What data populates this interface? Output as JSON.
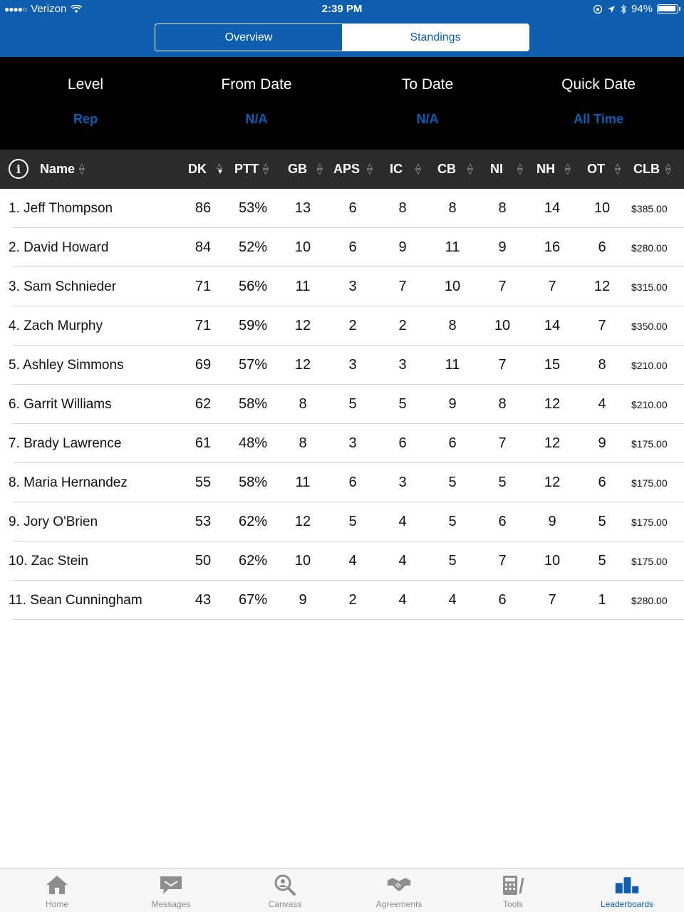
{
  "status_bar": {
    "signal": "●●●●○",
    "carrier": "Verizon",
    "time": "2:39 PM",
    "battery_text": "94%",
    "battery_level": 0.94
  },
  "segments": [
    {
      "label": "Overview",
      "selected": false
    },
    {
      "label": "Standings",
      "selected": true
    }
  ],
  "filters": [
    {
      "label": "Level",
      "value": "Rep"
    },
    {
      "label": "From Date",
      "value": "N/A"
    },
    {
      "label": "To Date",
      "value": "N/A"
    },
    {
      "label": "Quick Date",
      "value": "All Time"
    }
  ],
  "columns": {
    "info_icon": "i",
    "name": "Name",
    "dk": "DK",
    "ptt": "PTT",
    "gb": "GB",
    "aps": "APS",
    "ic": "IC",
    "cb": "CB",
    "ni": "NI",
    "nh": "NH",
    "ot": "OT",
    "clb": "CLB"
  },
  "rows": [
    {
      "name": "1. Jeff Thompson",
      "dk": "86",
      "ptt": "53%",
      "gb": "13",
      "aps": "6",
      "ic": "8",
      "cb": "8",
      "ni": "8",
      "nh": "14",
      "ot": "10",
      "clb": "$385.00"
    },
    {
      "name": "2. David Howard",
      "dk": "84",
      "ptt": "52%",
      "gb": "10",
      "aps": "6",
      "ic": "9",
      "cb": "11",
      "ni": "9",
      "nh": "16",
      "ot": "6",
      "clb": "$280.00"
    },
    {
      "name": "3. Sam Schnieder",
      "dk": "71",
      "ptt": "56%",
      "gb": "11",
      "aps": "3",
      "ic": "7",
      "cb": "10",
      "ni": "7",
      "nh": "7",
      "ot": "12",
      "clb": "$315.00"
    },
    {
      "name": "4. Zach Murphy",
      "dk": "71",
      "ptt": "59%",
      "gb": "12",
      "aps": "2",
      "ic": "2",
      "cb": "8",
      "ni": "10",
      "nh": "14",
      "ot": "7",
      "clb": "$350.00"
    },
    {
      "name": "5. Ashley Simmons",
      "dk": "69",
      "ptt": "57%",
      "gb": "12",
      "aps": "3",
      "ic": "3",
      "cb": "11",
      "ni": "7",
      "nh": "15",
      "ot": "8",
      "clb": "$210.00"
    },
    {
      "name": "6. Garrit Williams",
      "dk": "62",
      "ptt": "58%",
      "gb": "8",
      "aps": "5",
      "ic": "5",
      "cb": "9",
      "ni": "8",
      "nh": "12",
      "ot": "4",
      "clb": "$210.00"
    },
    {
      "name": "7. Brady Lawrence",
      "dk": "61",
      "ptt": "48%",
      "gb": "8",
      "aps": "3",
      "ic": "6",
      "cb": "6",
      "ni": "7",
      "nh": "12",
      "ot": "9",
      "clb": "$175.00"
    },
    {
      "name": "8. Maria Hernandez",
      "dk": "55",
      "ptt": "58%",
      "gb": "11",
      "aps": "6",
      "ic": "3",
      "cb": "5",
      "ni": "5",
      "nh": "12",
      "ot": "6",
      "clb": "$175.00"
    },
    {
      "name": "9. Jory O'Brien",
      "dk": "53",
      "ptt": "62%",
      "gb": "12",
      "aps": "5",
      "ic": "4",
      "cb": "5",
      "ni": "6",
      "nh": "9",
      "ot": "5",
      "clb": "$175.00"
    },
    {
      "name": "10. Zac Stein",
      "dk": "50",
      "ptt": "62%",
      "gb": "10",
      "aps": "4",
      "ic": "4",
      "cb": "5",
      "ni": "7",
      "nh": "10",
      "ot": "5",
      "clb": "$175.00"
    },
    {
      "name": "11. Sean Cunningham",
      "dk": "43",
      "ptt": "67%",
      "gb": "9",
      "aps": "2",
      "ic": "4",
      "cb": "4",
      "ni": "6",
      "nh": "7",
      "ot": "1",
      "clb": "$280.00"
    }
  ],
  "tabs": [
    {
      "label": "Home",
      "icon": "home-icon",
      "active": false
    },
    {
      "label": "Messages",
      "icon": "messages-icon",
      "active": false
    },
    {
      "label": "Canvass",
      "icon": "canvass-icon",
      "active": false
    },
    {
      "label": "Agreements",
      "icon": "agreements-icon",
      "active": false
    },
    {
      "label": "Tools",
      "icon": "tools-icon",
      "active": false
    },
    {
      "label": "Leaderboards",
      "icon": "leaderboards-icon",
      "active": true
    }
  ],
  "colors": {
    "brand_blue": "#0d5eaf",
    "header_dark": "#2b2b2b",
    "filter_bg": "#000000",
    "tab_inactive": "#8e8e8e"
  }
}
